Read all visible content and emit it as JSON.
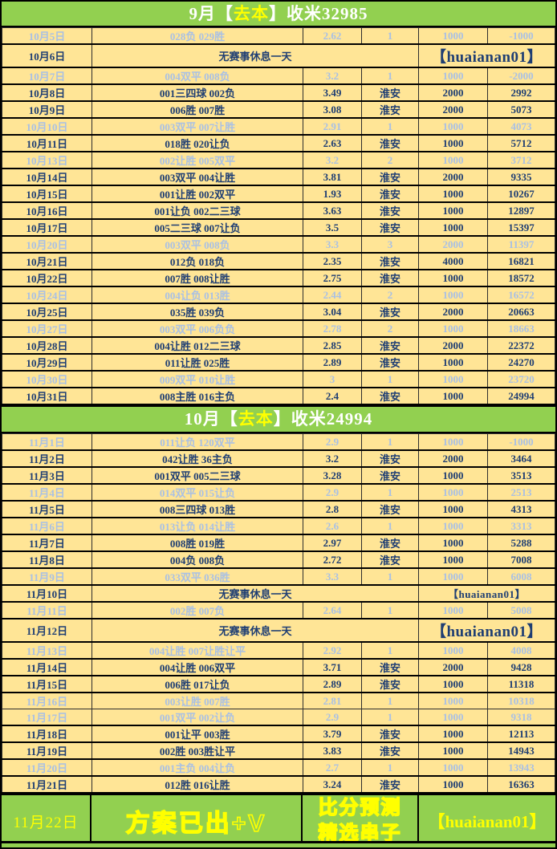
{
  "colors": {
    "header_green": "#92D050",
    "row_yellow": "#FFE596",
    "dark_text": "#1F3E73",
    "faded_text": "#A9C0E4",
    "watermark_blue": "#2353A8",
    "highlight_yellow": "#FFFF00",
    "border_black": "#000000"
  },
  "headers": {
    "september": {
      "prefix": "9月【",
      "highlight": "去本",
      "suffix": "】收米32985"
    },
    "october": {
      "prefix": "10月【",
      "highlight": "去本",
      "suffix": "】收米24994"
    }
  },
  "october_rows": [
    {
      "date": "10月5日",
      "pick": "028负 029胜",
      "odds": "2.62",
      "unit": "1",
      "stake": "1000",
      "total": "-1000",
      "status": "lose"
    },
    {
      "date": "10月6日",
      "rest": "无赛事休息一天",
      "watermark": "【huaianan01】",
      "status": "rest",
      "tall": true
    },
    {
      "date": "10月7日",
      "pick": "004双平 008负",
      "odds": "3.2",
      "unit": "1",
      "stake": "1000",
      "total": "-2000",
      "status": "lose"
    },
    {
      "date": "10月8日",
      "pick": "001三四球 002负",
      "odds": "3.49",
      "unit": "淮安",
      "stake": "2000",
      "total": "2992",
      "status": "win"
    },
    {
      "date": "10月9日",
      "pick": "006胜 007胜",
      "odds": "3.08",
      "unit": "淮安",
      "stake": "2000",
      "total": "5073",
      "status": "win"
    },
    {
      "date": "10月10日",
      "pick": "003双平 007让胜",
      "odds": "2.91",
      "unit": "1",
      "stake": "1000",
      "total": "4073",
      "status": "lose"
    },
    {
      "date": "10月11日",
      "pick": "018胜 020让负",
      "odds": "2.63",
      "unit": "淮安",
      "stake": "1000",
      "total": "5712",
      "status": "win"
    },
    {
      "date": "10月13日",
      "pick": "002让胜 005双平",
      "odds": "3.2",
      "unit": "2",
      "stake": "1000",
      "total": "3712",
      "status": "lose"
    },
    {
      "date": "10月14日",
      "pick": "003双平 004让胜",
      "odds": "3.81",
      "unit": "淮安",
      "stake": "2000",
      "total": "9335",
      "status": "win"
    },
    {
      "date": "10月15日",
      "pick": "001让胜 002双平",
      "odds": "1.93",
      "unit": "淮安",
      "stake": "1000",
      "total": "10267",
      "status": "win"
    },
    {
      "date": "10月16日",
      "pick": "001让负 002二三球",
      "odds": "3.63",
      "unit": "淮安",
      "stake": "1000",
      "total": "12897",
      "status": "win"
    },
    {
      "date": "10月17日",
      "pick": "005二三球 007让负",
      "odds": "3.5",
      "unit": "淮安",
      "stake": "1000",
      "total": "15397",
      "status": "win"
    },
    {
      "date": "10月20日",
      "pick": "003双平 008负",
      "odds": "3.3",
      "unit": "3",
      "stake": "2000",
      "total": "11397",
      "status": "lose"
    },
    {
      "date": "10月21日",
      "pick": "012负 018负",
      "odds": "2.35",
      "unit": "淮安",
      "stake": "4000",
      "total": "16821",
      "status": "win"
    },
    {
      "date": "10月22日",
      "pick": "007胜 008让胜",
      "odds": "2.75",
      "unit": "淮安",
      "stake": "1000",
      "total": "18572",
      "status": "win"
    },
    {
      "date": "10月24日",
      "pick": "004让负 013胜",
      "odds": "2.44",
      "unit": "2",
      "stake": "1000",
      "total": "16572",
      "status": "lose"
    },
    {
      "date": "10月25日",
      "pick": "035胜 039负",
      "odds": "3.04",
      "unit": "淮安",
      "stake": "2000",
      "total": "20663",
      "status": "win"
    },
    {
      "date": "10月27日",
      "pick": "003双平 006负负",
      "odds": "2.78",
      "unit": "2",
      "stake": "1000",
      "total": "18663",
      "status": "lose"
    },
    {
      "date": "10月28日",
      "pick": "004让胜 012二三球",
      "odds": "2.85",
      "unit": "淮安",
      "stake": "2000",
      "total": "22372",
      "status": "win"
    },
    {
      "date": "10月29日",
      "pick": "011让胜 025胜",
      "odds": "2.89",
      "unit": "淮安",
      "stake": "1000",
      "total": "24270",
      "status": "win"
    },
    {
      "date": "10月30日",
      "pick": "009双平 010让胜",
      "odds": "3",
      "unit": "1",
      "stake": "1000",
      "total": "23720",
      "status": "lose"
    },
    {
      "date": "10月31日",
      "pick": "008主胜 016主负",
      "odds": "2.4",
      "unit": "淮安",
      "stake": "1000",
      "total": "24994",
      "status": "win"
    }
  ],
  "november_rows": [
    {
      "date": "11月1日",
      "pick": "011让负 120双平",
      "odds": "2.9",
      "unit": "1",
      "stake": "1000",
      "total": "-1000",
      "status": "lose"
    },
    {
      "date": "11月2日",
      "pick": "042让胜 36主负",
      "odds": "3.2",
      "unit": "淮安",
      "stake": "2000",
      "total": "3464",
      "status": "win"
    },
    {
      "date": "11月3日",
      "pick": "001双平 005二三球",
      "odds": "3.28",
      "unit": "淮安",
      "stake": "1000",
      "total": "3513",
      "status": "win"
    },
    {
      "date": "11月4日",
      "pick": "014双平 015让负",
      "odds": "2.9",
      "unit": "1",
      "stake": "1000",
      "total": "2513",
      "status": "lose"
    },
    {
      "date": "11月5日",
      "pick": "008三四球 013胜",
      "odds": "2.8",
      "unit": "淮安",
      "stake": "1000",
      "total": "4313",
      "status": "win"
    },
    {
      "date": "11月6日",
      "pick": "013让负 014让胜",
      "odds": "2.6",
      "unit": "1",
      "stake": "1000",
      "total": "3313",
      "status": "lose"
    },
    {
      "date": "11月7日",
      "pick": "008胜 019胜",
      "odds": "2.97",
      "unit": "淮安",
      "stake": "1000",
      "total": "5288",
      "status": "win"
    },
    {
      "date": "11月8日",
      "pick": "004负 008负",
      "odds": "2.72",
      "unit": "淮安",
      "stake": "1000",
      "total": "7008",
      "status": "win"
    },
    {
      "date": "11月9日",
      "pick": "033双平 036胜",
      "odds": "3.3",
      "unit": "1",
      "stake": "1000",
      "total": "6008",
      "status": "lose"
    },
    {
      "date": "11月10日",
      "rest": "无赛事休息一天",
      "watermark": "【huaianan01】",
      "status": "rest",
      "tall": false
    },
    {
      "date": "11月11日",
      "pick": "002胜 007负",
      "odds": "2.64",
      "unit": "1",
      "stake": "1000",
      "total": "5008",
      "status": "lose"
    },
    {
      "date": "11月12日",
      "rest": "无赛事休息一天",
      "watermark": "【huaianan01】",
      "status": "rest",
      "tall": true
    },
    {
      "date": "11月13日",
      "pick": "004让胜 007让胜让平",
      "odds": "2.92",
      "unit": "1",
      "stake": "1000",
      "total": "4008",
      "status": "lose"
    },
    {
      "date": "11月14日",
      "pick": "004让胜 006双平",
      "odds": "3.71",
      "unit": "淮安",
      "stake": "2000",
      "total": "9428",
      "status": "win"
    },
    {
      "date": "11月15日",
      "pick": "006胜 017让负",
      "odds": "2.89",
      "unit": "淮安",
      "stake": "1000",
      "total": "11318",
      "status": "win"
    },
    {
      "date": "11月16日",
      "pick": "003让胜 007胜",
      "odds": "2.81",
      "unit": "1",
      "stake": "1000",
      "total": "10318",
      "status": "lose"
    },
    {
      "date": "11月17日",
      "pick": "001双平 002让负",
      "odds": "2.9",
      "unit": "1",
      "stake": "1000",
      "total": "9318",
      "status": "lose"
    },
    {
      "date": "11月18日",
      "pick": "001让平 003胜",
      "odds": "3.79",
      "unit": "淮安",
      "stake": "1000",
      "total": "12113",
      "status": "win"
    },
    {
      "date": "11月19日",
      "pick": "002胜 003胜让平",
      "odds": "3.83",
      "unit": "淮安",
      "stake": "1000",
      "total": "14943",
      "status": "win"
    },
    {
      "date": "11月20日",
      "pick": "001主负 004让负",
      "odds": "2.7",
      "unit": "1",
      "stake": "1000",
      "total": "13943",
      "status": "lose"
    },
    {
      "date": "11月21日",
      "pick": "012胜 016让胜",
      "odds": "3.24",
      "unit": "淮安",
      "stake": "1000",
      "total": "16363",
      "status": "win"
    }
  ],
  "footer": {
    "date": "11月22日",
    "plan": "方案已出+V",
    "predict_line1": "比分预测",
    "predict_line2": "精选串子",
    "watermark": "【huaianan01】"
  }
}
